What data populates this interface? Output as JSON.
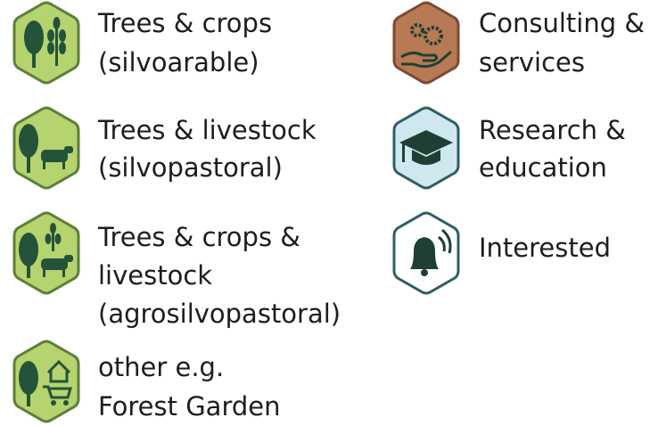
{
  "legend": {
    "items": [
      {
        "lines": [
          "Trees & crops",
          "(silvoarable)"
        ]
      },
      {
        "lines": [
          "Trees & livestock",
          "(silvopastoral)"
        ]
      },
      {
        "lines": [
          "Trees & crops &",
          "livestock",
          "(agrosilvopastoral)"
        ]
      },
      {
        "lines": [
          "other e.g.",
          "Forest Garden"
        ]
      },
      {
        "lines": [
          "Consulting &",
          "services"
        ]
      },
      {
        "lines": [
          "Research &",
          "education"
        ]
      },
      {
        "lines": [
          "Interested"
        ]
      }
    ]
  }
}
